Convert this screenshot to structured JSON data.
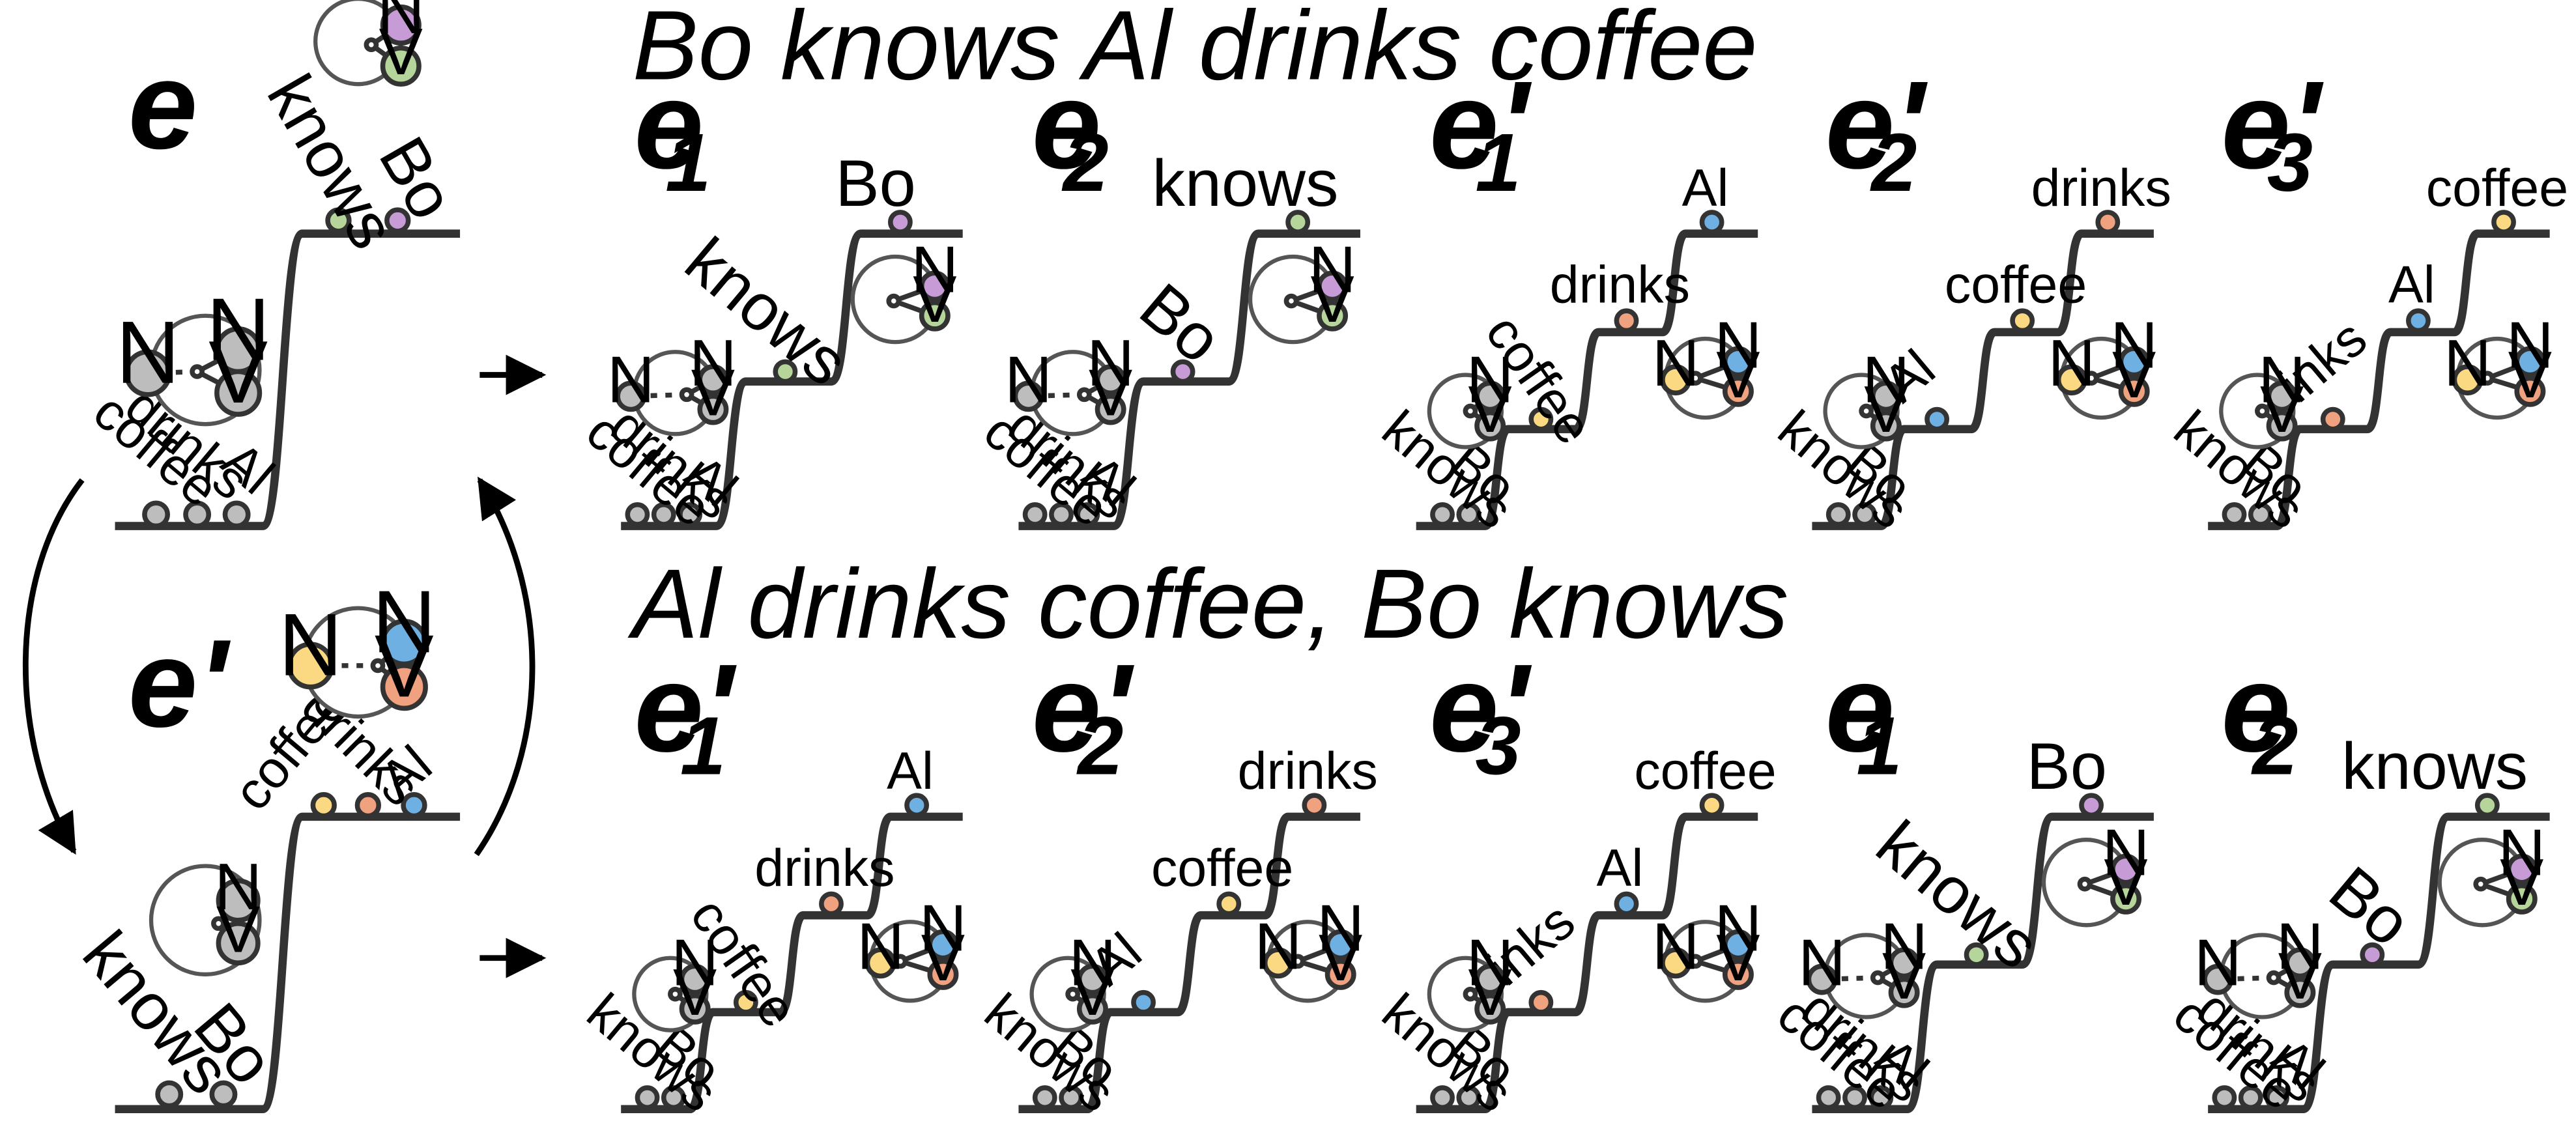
{
  "headings": {
    "top": "Bo knows Al drinks coffee",
    "bottom": "Al drinks coffee, Bo knows"
  },
  "words": {
    "knows": "knows",
    "bo": "Bo",
    "al": "Al",
    "drinks": "drinks",
    "coffee": "coffee"
  },
  "node_letters": {
    "n": "N",
    "v": "V"
  },
  "episodes": {
    "e": "e",
    "e_prime": "e'",
    "sub1": "1",
    "sub2": "2",
    "sub3": "3"
  },
  "colors": {
    "knows": "#b5d59a",
    "bo": "#c79bd6",
    "al": "#6fb0e3",
    "drinks": "#f0a17f",
    "coffee": "#fbd982",
    "grey": "#bdbdbd"
  }
}
